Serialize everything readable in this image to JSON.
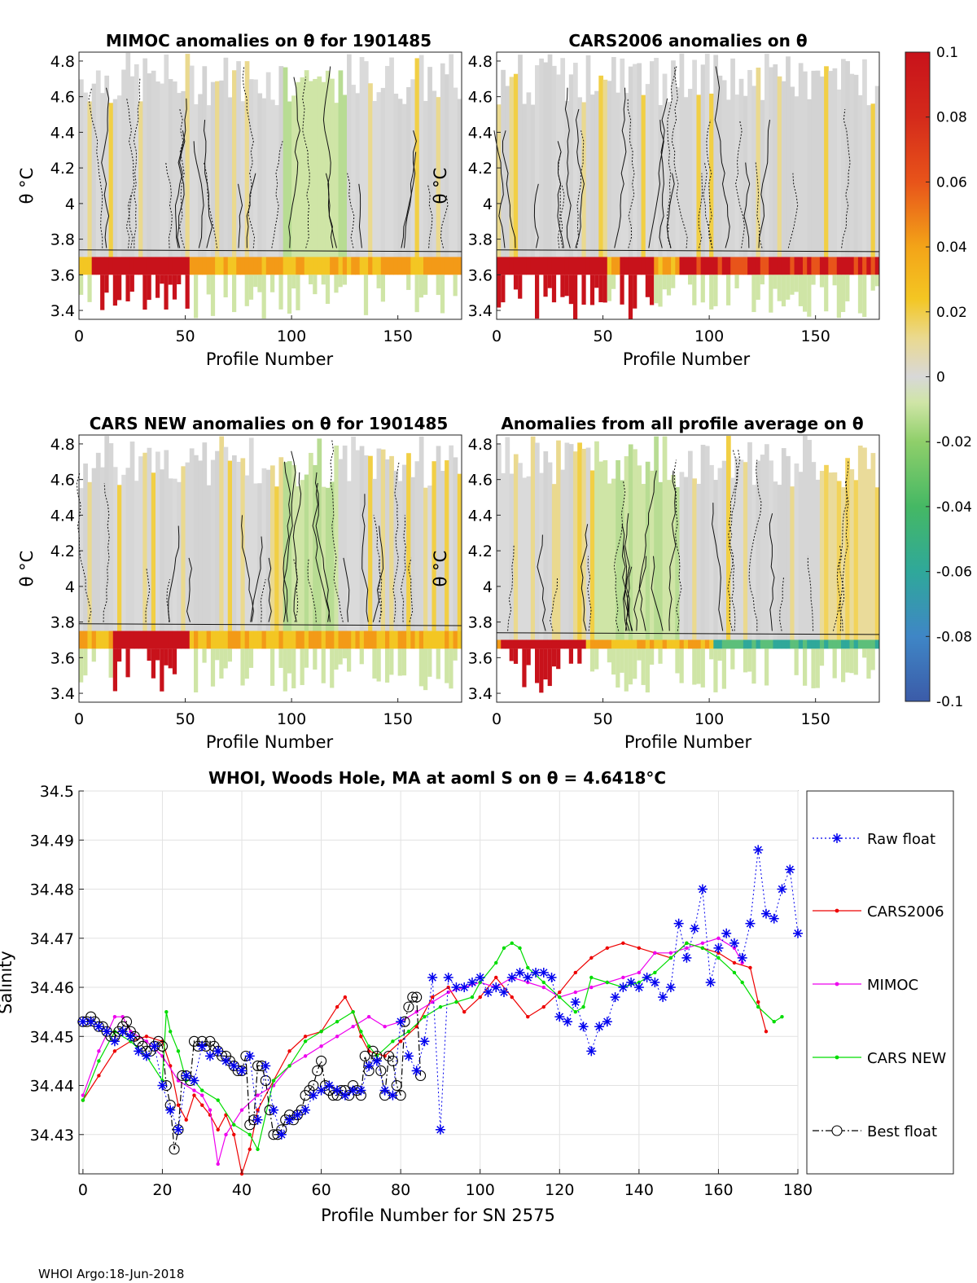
{
  "footer": "WHOI Argo:18-Jun-2018",
  "colorbar": {
    "tick_labels": [
      "0.1",
      "0.08",
      "0.06",
      "0.04",
      "0.02",
      "0",
      "-0.02",
      "-0.04",
      "-0.06",
      "-0.08",
      "-0.1"
    ],
    "range": [
      -0.1,
      0.1
    ],
    "colors": [
      "#3b5ba8",
      "#3f86c6",
      "#2fa89a",
      "#45b864",
      "#8fcf6a",
      "#cfe5a6",
      "#d8d8d8",
      "#ead98f",
      "#f3c623",
      "#f39a17",
      "#e8541a",
      "#c8121b"
    ]
  },
  "chart_data": [
    {
      "type": "heatmap",
      "title": "MIMOC anomalies on θ  for 1901485",
      "xlabel": "Profile Number",
      "ylabel": "θ °C",
      "xlim": [
        0,
        180
      ],
      "ylim": [
        3.35,
        4.85
      ],
      "x_ticks": [
        "0",
        "50",
        "100",
        "150"
      ],
      "y_ticks": [
        "3.4",
        "3.6",
        "3.8",
        "4",
        "4.2",
        "4.4",
        "4.6",
        "4.8"
      ],
      "warm_band_theta": [
        3.6,
        3.7
      ]
    },
    {
      "type": "heatmap",
      "title": "CARS2006 anomalies on θ",
      "xlabel": "Profile Number",
      "ylabel": "",
      "xlim": [
        0,
        180
      ],
      "ylim": [
        3.35,
        4.85
      ],
      "x_ticks": [
        "0",
        "50",
        "100",
        "150"
      ],
      "y_ticks": [
        "3.4",
        "3.6",
        "3.8",
        "4",
        "4.2",
        "4.4",
        "4.6",
        "4.8"
      ],
      "warm_band_theta": [
        3.6,
        3.7
      ]
    },
    {
      "type": "heatmap",
      "title": "CARS NEW anomalies on θ for 1901485",
      "xlabel": "Profile Number",
      "ylabel": "θ °C",
      "xlim": [
        0,
        180
      ],
      "ylim": [
        3.35,
        4.85
      ],
      "x_ticks": [
        "0",
        "50",
        "100",
        "150"
      ],
      "y_ticks": [
        "3.4",
        "3.6",
        "3.8",
        "4",
        "4.2",
        "4.4",
        "4.6",
        "4.8"
      ],
      "warm_band_theta": [
        3.65,
        3.75
      ]
    },
    {
      "type": "heatmap",
      "title": "Anomalies from all profile average on θ",
      "xlabel": "Profile Number",
      "ylabel": "",
      "xlim": [
        0,
        180
      ],
      "ylim": [
        3.35,
        4.85
      ],
      "x_ticks": [
        "0",
        "50",
        "100",
        "150"
      ],
      "y_ticks": [
        "3.4",
        "3.6",
        "3.8",
        "4",
        "4.2",
        "4.4",
        "4.6",
        "4.8"
      ],
      "warm_band_theta": [
        3.65,
        3.7
      ]
    },
    {
      "type": "line",
      "title": "WHOI, Woods Hole, MA at aoml S on θ = 4.6418°C",
      "xlabel": "Profile Number for SN 2575",
      "ylabel": "Salinity",
      "xlim": [
        -1,
        180
      ],
      "ylim": [
        34.422,
        34.5
      ],
      "x_ticks": [
        "0",
        "20",
        "40",
        "60",
        "80",
        "100",
        "120",
        "140",
        "160",
        "180"
      ],
      "y_ticks": [
        "34.43",
        "34.44",
        "34.45",
        "34.46",
        "34.47",
        "34.48",
        "34.49",
        "34.5"
      ],
      "grid": true,
      "legend_position": "right",
      "series": [
        {
          "name": "Raw float",
          "color": "#0000ee",
          "style": "dotted-star",
          "x": [
            0,
            2,
            4,
            6,
            8,
            10,
            12,
            14,
            16,
            18,
            20,
            22,
            24,
            26,
            28,
            30,
            32,
            34,
            36,
            38,
            40,
            42,
            44,
            46,
            48,
            50,
            52,
            54,
            56,
            58,
            60,
            62,
            64,
            66,
            68,
            70,
            72,
            74,
            76,
            78,
            80,
            82,
            84,
            86,
            88,
            90,
            92,
            94,
            96,
            98,
            100,
            102,
            104,
            106,
            108,
            110,
            112,
            114,
            116,
            118,
            120,
            122,
            124,
            126,
            128,
            130,
            132,
            134,
            136,
            138,
            140,
            142,
            144,
            146,
            148,
            150,
            152,
            154,
            156,
            158,
            160,
            162,
            164,
            166,
            168,
            170,
            172,
            174,
            176,
            178,
            180
          ],
          "values": [
            34.453,
            34.453,
            34.452,
            34.451,
            34.449,
            34.451,
            34.45,
            34.447,
            34.446,
            34.448,
            34.44,
            34.435,
            34.431,
            34.442,
            34.441,
            34.448,
            34.446,
            34.447,
            34.445,
            34.444,
            34.443,
            34.446,
            34.433,
            34.444,
            34.435,
            34.43,
            34.433,
            34.434,
            34.435,
            34.438,
            34.439,
            34.44,
            34.439,
            34.438,
            34.439,
            34.439,
            34.444,
            34.445,
            34.439,
            34.438,
            34.453,
            34.446,
            34.443,
            34.449,
            34.462,
            34.431,
            34.462,
            34.46,
            34.46,
            34.461,
            34.462,
            34.459,
            34.46,
            34.459,
            34.462,
            34.463,
            34.462,
            34.463,
            34.463,
            34.462,
            34.454,
            34.453,
            34.457,
            34.452,
            34.447,
            34.452,
            34.453,
            34.458,
            34.46,
            34.461,
            34.46,
            34.462,
            34.461,
            34.458,
            34.46,
            34.473,
            34.466,
            34.472,
            34.48,
            34.461,
            34.468,
            34.471,
            34.469,
            34.466,
            34.473,
            34.488,
            34.475,
            34.474,
            34.48,
            34.484,
            34.471
          ]
        },
        {
          "name": "CARS2006",
          "color": "#ee0000",
          "style": "solid-dot",
          "x": [
            0,
            4,
            8,
            12,
            16,
            20,
            22,
            24,
            26,
            28,
            30,
            32,
            34,
            36,
            38,
            40,
            42,
            44,
            48,
            52,
            56,
            60,
            64,
            66,
            68,
            70,
            72,
            76,
            80,
            84,
            88,
            92,
            96,
            100,
            104,
            108,
            112,
            116,
            120,
            124,
            128,
            132,
            136,
            140,
            144,
            148,
            152,
            156,
            160,
            164,
            168,
            170,
            172
          ],
          "values": [
            34.437,
            34.442,
            34.447,
            34.449,
            34.45,
            34.449,
            34.444,
            34.436,
            34.433,
            34.438,
            34.436,
            34.434,
            34.431,
            34.434,
            34.43,
            34.422,
            34.427,
            34.435,
            34.441,
            34.447,
            34.45,
            34.451,
            34.456,
            34.458,
            34.455,
            34.45,
            34.447,
            34.446,
            34.449,
            34.452,
            34.458,
            34.46,
            34.455,
            34.458,
            34.462,
            34.458,
            34.454,
            34.456,
            34.459,
            34.463,
            34.466,
            34.468,
            34.469,
            34.468,
            34.467,
            34.466,
            34.469,
            34.468,
            34.467,
            34.465,
            34.464,
            34.457,
            34.451
          ]
        },
        {
          "name": "MIMOC",
          "color": "#ee00ee",
          "style": "solid-dot",
          "x": [
            0,
            4,
            8,
            10,
            12,
            16,
            20,
            24,
            28,
            30,
            32,
            34,
            36,
            40,
            44,
            48,
            52,
            56,
            60,
            64,
            68,
            72,
            76,
            80,
            84,
            88,
            92,
            96,
            100,
            104,
            108,
            112,
            116,
            120,
            124,
            128,
            132,
            136,
            140,
            144,
            148,
            152,
            156,
            160,
            164,
            166
          ],
          "values": [
            34.438,
            34.447,
            34.454,
            34.454,
            34.451,
            34.449,
            34.446,
            34.441,
            34.439,
            34.438,
            34.435,
            34.424,
            34.43,
            34.435,
            34.438,
            34.44,
            34.444,
            34.446,
            34.448,
            34.45,
            34.452,
            34.454,
            34.452,
            34.453,
            34.455,
            34.457,
            34.459,
            34.46,
            34.461,
            34.46,
            34.462,
            34.461,
            34.46,
            34.458,
            34.459,
            34.46,
            34.461,
            34.462,
            34.463,
            34.467,
            34.467,
            34.468,
            34.469,
            34.47,
            34.468,
            34.465
          ]
        },
        {
          "name": "CARS NEW",
          "color": "#00dd00",
          "style": "solid-dot",
          "x": [
            0,
            4,
            8,
            12,
            16,
            20,
            21,
            22,
            24,
            26,
            28,
            30,
            34,
            38,
            42,
            44,
            48,
            52,
            56,
            60,
            64,
            68,
            70,
            72,
            74,
            78,
            82,
            86,
            90,
            94,
            98,
            100,
            104,
            106,
            108,
            110,
            112,
            116,
            120,
            124,
            126,
            128,
            132,
            136,
            140,
            144,
            148,
            152,
            156,
            160,
            164,
            166,
            170,
            174,
            176
          ],
          "values": [
            34.437,
            34.445,
            34.451,
            34.449,
            34.446,
            34.441,
            34.455,
            34.451,
            34.447,
            34.441,
            34.441,
            34.439,
            34.437,
            34.432,
            34.43,
            34.427,
            34.441,
            34.444,
            34.449,
            34.451,
            34.453,
            34.455,
            34.451,
            34.448,
            34.446,
            34.449,
            34.451,
            34.454,
            34.456,
            34.457,
            34.458,
            34.461,
            34.465,
            34.468,
            34.469,
            34.468,
            34.464,
            34.461,
            34.458,
            34.455,
            34.456,
            34.462,
            34.461,
            34.46,
            34.461,
            34.463,
            34.466,
            34.469,
            34.468,
            34.466,
            34.463,
            34.461,
            34.456,
            34.453,
            34.454
          ]
        },
        {
          "name": "Best float",
          "color": "#000000",
          "style": "dashdot-circle",
          "x": [
            0,
            1,
            2,
            3,
            4,
            5,
            6,
            7,
            8,
            9,
            10,
            11,
            12,
            13,
            14,
            15,
            16,
            17,
            18,
            19,
            20,
            21,
            22,
            23,
            24,
            25,
            26,
            27,
            28,
            29,
            30,
            31,
            32,
            33,
            34,
            35,
            36,
            37,
            38,
            39,
            40,
            41,
            42,
            43,
            44,
            45,
            46,
            47,
            48,
            49,
            50,
            51,
            52,
            53,
            54,
            55,
            56,
            57,
            58,
            59,
            60,
            61,
            62,
            63,
            64,
            65,
            66,
            67,
            68,
            69,
            70,
            71,
            72,
            73,
            74,
            75,
            76,
            77,
            78,
            79,
            80,
            81,
            82,
            83,
            84,
            85
          ],
          "values": [
            34.453,
            34.453,
            34.454,
            34.453,
            34.452,
            34.452,
            34.451,
            34.45,
            34.45,
            34.451,
            34.452,
            34.453,
            34.451,
            34.45,
            34.449,
            34.448,
            34.447,
            34.447,
            34.448,
            34.449,
            34.448,
            34.44,
            34.436,
            34.427,
            34.431,
            34.442,
            34.442,
            34.441,
            34.449,
            34.448,
            34.449,
            34.448,
            34.449,
            34.448,
            34.447,
            34.446,
            34.446,
            34.445,
            34.444,
            34.443,
            34.443,
            34.446,
            34.432,
            34.433,
            34.444,
            34.444,
            34.441,
            34.435,
            34.43,
            34.43,
            34.431,
            34.433,
            34.434,
            34.433,
            34.434,
            34.435,
            34.438,
            34.439,
            34.44,
            34.443,
            34.445,
            34.44,
            34.439,
            34.438,
            34.438,
            34.439,
            34.439,
            34.438,
            34.44,
            34.439,
            34.438,
            34.446,
            34.443,
            34.447,
            34.446,
            34.443,
            34.438,
            34.446,
            34.445,
            34.44,
            34.438,
            34.453,
            34.456,
            34.458,
            34.458,
            34.442
          ]
        }
      ]
    }
  ]
}
